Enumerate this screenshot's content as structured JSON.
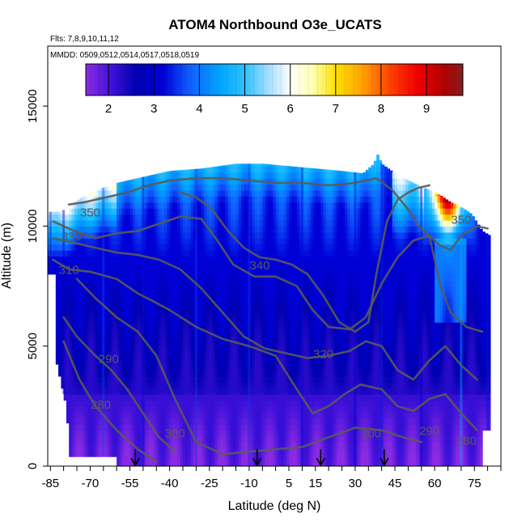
{
  "chart_data": {
    "type": "heatmap",
    "title": "ATOM4 Northbound O3e_UCATS",
    "subtitle_flights": "Flts: 7,8,9,10,11,12",
    "subtitle_dates": "MMDD: 0509,0512,0514,0517,0518,0519",
    "xlabel": "Latitude (deg N)",
    "ylabel": "Altitude (m)",
    "xlim": [
      -86,
      85
    ],
    "ylim": [
      0,
      17500
    ],
    "x_ticks": [
      -85,
      -80,
      -75,
      -70,
      -65,
      -60,
      -55,
      -50,
      -45,
      -40,
      -35,
      -30,
      -25,
      -20,
      -15,
      -10,
      -5,
      0,
      5,
      10,
      15,
      20,
      25,
      30,
      35,
      40,
      45,
      50,
      55,
      60,
      65,
      70,
      75,
      80,
      85
    ],
    "x_tick_labels": [
      {
        "value": -85,
        "label": "-85"
      },
      {
        "value": -70,
        "label": "-70"
      },
      {
        "value": -55,
        "label": "-55"
      },
      {
        "value": -40,
        "label": "-40"
      },
      {
        "value": -25,
        "label": "-25"
      },
      {
        "value": -10,
        "label": "-10"
      },
      {
        "value": 5,
        "label": "5"
      },
      {
        "value": 15,
        "label": "15"
      },
      {
        "value": 30,
        "label": "30"
      },
      {
        "value": 45,
        "label": "45"
      },
      {
        "value": 60,
        "label": "60"
      },
      {
        "value": 75,
        "label": "75"
      }
    ],
    "y_tick_labels": [
      {
        "value": 0,
        "label": "0"
      },
      {
        "value": 5000,
        "label": "5000"
      },
      {
        "value": 10000,
        "label": "10000"
      },
      {
        "value": 15000,
        "label": "15000"
      }
    ],
    "colorbar": {
      "range": [
        1.5,
        9.8
      ],
      "tick_labels": [
        {
          "value": 2,
          "label": "2"
        },
        {
          "value": 3,
          "label": "3"
        },
        {
          "value": 4,
          "label": "4"
        },
        {
          "value": 5,
          "label": "5"
        },
        {
          "value": 6,
          "label": "6"
        },
        {
          "value": 7,
          "label": "7"
        },
        {
          "value": 8,
          "label": "8"
        },
        {
          "value": 9,
          "label": "9"
        }
      ],
      "color_stops": [
        {
          "v": 1.5,
          "c": "#8a2be2"
        },
        {
          "v": 2.1,
          "c": "#3c10d8"
        },
        {
          "v": 2.6,
          "c": "#0000b0"
        },
        {
          "v": 3.2,
          "c": "#0000d8"
        },
        {
          "v": 3.8,
          "c": "#1060ff"
        },
        {
          "v": 4.5,
          "c": "#00aaff"
        },
        {
          "v": 5.0,
          "c": "#30c0ff"
        },
        {
          "v": 5.5,
          "c": "#a0dcff"
        },
        {
          "v": 6.0,
          "c": "#ffffff"
        },
        {
          "v": 6.5,
          "c": "#ffffb0"
        },
        {
          "v": 7.0,
          "c": "#ffe000"
        },
        {
          "v": 7.6,
          "c": "#ffa000"
        },
        {
          "v": 8.2,
          "c": "#ff4000"
        },
        {
          "v": 8.8,
          "c": "#f00000"
        },
        {
          "v": 9.4,
          "c": "#b00000"
        },
        {
          "v": 9.8,
          "c": "#802020"
        }
      ]
    },
    "sample_flight_legs": [
      {
        "lat": -85,
        "alts": [
          10500,
          10000,
          9000,
          8000
        ]
      },
      {
        "lat": -80,
        "alts": [
          10300,
          9500,
          7500,
          5000,
          3000,
          1500
        ]
      },
      {
        "lat": -65,
        "alts": [
          11500,
          10000,
          7000,
          4000,
          1000
        ]
      },
      {
        "lat": -50,
        "alts": [
          12200,
          10500,
          6000,
          2000,
          500
        ]
      },
      {
        "lat": -30,
        "alts": [
          12400,
          9000,
          4000,
          500
        ]
      },
      {
        "lat": -10,
        "alts": [
          12600,
          8000,
          3000,
          500
        ]
      },
      {
        "lat": 10,
        "alts": [
          12300,
          9500,
          5000,
          1000
        ]
      },
      {
        "lat": 30,
        "alts": [
          12100,
          8500,
          2500,
          500
        ]
      },
      {
        "lat": 40,
        "alts": [
          12900,
          11000,
          6000,
          500
        ]
      },
      {
        "lat": 55,
        "alts": [
          11500,
          10000,
          6000,
          1000
        ]
      },
      {
        "lat": 70,
        "alts": [
          10500,
          9000,
          6000,
          1000
        ]
      },
      {
        "lat": 80,
        "alts": [
          9500,
          5000,
          2000
        ]
      }
    ],
    "theta_contours": [
      {
        "level": 280,
        "label": "280",
        "points": [
          [
            -80,
            5200
          ],
          [
            -74,
            3600
          ],
          [
            -68,
            2500
          ],
          [
            -60,
            1500
          ],
          [
            -52,
            700
          ],
          [
            -45,
            200
          ]
        ]
      },
      {
        "level": 290,
        "label": "290",
        "points": [
          [
            -80,
            6200
          ],
          [
            -75,
            5400
          ],
          [
            -68,
            4600
          ],
          [
            -62,
            4000
          ],
          [
            -56,
            3200
          ],
          [
            -50,
            2200
          ],
          [
            -44,
            1200
          ],
          [
            -38,
            600
          ]
        ]
      },
      {
        "level": 300,
        "label": "300",
        "points": [
          [
            -75,
            7800
          ],
          [
            -68,
            7000
          ],
          [
            -60,
            6200
          ],
          [
            -52,
            5600
          ],
          [
            -45,
            4600
          ],
          [
            -38,
            2800
          ],
          [
            -30,
            1000
          ],
          [
            -20,
            500
          ],
          [
            -10,
            600
          ],
          [
            0,
            700
          ],
          [
            10,
            800
          ],
          [
            20,
            1200
          ],
          [
            30,
            1600
          ],
          [
            40,
            1500
          ],
          [
            48,
            1200
          ],
          [
            55,
            1000
          ]
        ]
      },
      {
        "level": 310,
        "label": "310",
        "points": [
          [
            -84,
            8600
          ],
          [
            -78,
            8200
          ],
          [
            -70,
            8100
          ],
          [
            -60,
            7800
          ],
          [
            -52,
            7200
          ],
          [
            -45,
            6800
          ],
          [
            -40,
            6500
          ],
          [
            -30,
            5800
          ],
          [
            -20,
            5300
          ],
          [
            -10,
            5000
          ],
          [
            0,
            4600
          ],
          [
            8,
            3200
          ],
          [
            14,
            2200
          ],
          [
            20,
            2500
          ],
          [
            26,
            3000
          ],
          [
            32,
            3400
          ],
          [
            40,
            3200
          ],
          [
            46,
            2500
          ],
          [
            52,
            2300
          ],
          [
            58,
            2800
          ],
          [
            64,
            3000
          ],
          [
            70,
            2200
          ],
          [
            76,
            1500
          ]
        ]
      },
      {
        "level": 320,
        "label": "320",
        "points": [
          [
            -84,
            9500
          ],
          [
            -76,
            9300
          ],
          [
            -68,
            9100
          ],
          [
            -60,
            8900
          ],
          [
            -52,
            8800
          ],
          [
            -44,
            8600
          ],
          [
            -36,
            8200
          ],
          [
            -28,
            7400
          ],
          [
            -20,
            6400
          ],
          [
            -12,
            5400
          ],
          [
            -4,
            4900
          ],
          [
            4,
            4700
          ],
          [
            12,
            4500
          ],
          [
            20,
            4600
          ],
          [
            28,
            4800
          ],
          [
            34,
            5200
          ],
          [
            40,
            5000
          ],
          [
            46,
            4000
          ],
          [
            52,
            3600
          ],
          [
            58,
            4400
          ],
          [
            64,
            5000
          ],
          [
            70,
            4200
          ],
          [
            76,
            3600
          ]
        ]
      },
      {
        "level": 330,
        "label": "330",
        "points": [
          [
            -84,
            10200
          ],
          [
            -76,
            9800
          ],
          [
            -68,
            9500
          ],
          [
            -60,
            9700
          ],
          [
            -52,
            9800
          ],
          [
            -44,
            10100
          ],
          [
            -36,
            10400
          ],
          [
            -28,
            10300
          ],
          [
            -22,
            9400
          ],
          [
            -16,
            8400
          ],
          [
            -8,
            7900
          ],
          [
            0,
            7900
          ],
          [
            8,
            7500
          ],
          [
            14,
            6500
          ],
          [
            20,
            5800
          ],
          [
            28,
            5700
          ],
          [
            34,
            6200
          ],
          [
            40,
            7600
          ],
          [
            46,
            8700
          ],
          [
            52,
            9400
          ],
          [
            58,
            9600
          ],
          [
            62,
            7600
          ],
          [
            66,
            6400
          ],
          [
            72,
            5800
          ],
          [
            78,
            5600
          ]
        ]
      },
      {
        "level": 340,
        "label": "340",
        "points": [
          [
            -36,
            11400
          ],
          [
            -30,
            11200
          ],
          [
            -24,
            10700
          ],
          [
            -18,
            9800
          ],
          [
            -12,
            9100
          ],
          [
            -6,
            8700
          ],
          [
            0,
            8600
          ],
          [
            6,
            8400
          ],
          [
            12,
            8000
          ],
          [
            18,
            7100
          ],
          [
            24,
            6000
          ],
          [
            30,
            5600
          ],
          [
            35,
            6000
          ],
          [
            38,
            8000
          ],
          [
            42,
            10200
          ],
          [
            46,
            11100
          ],
          [
            50,
            11400
          ],
          [
            54,
            11600
          ],
          [
            58,
            11700
          ]
        ]
      },
      {
        "level": 350,
        "label": "350",
        "points": [
          [
            -78,
            10900
          ],
          [
            -72,
            11000
          ],
          [
            -64,
            11200
          ],
          [
            -56,
            11400
          ],
          [
            -48,
            11700
          ],
          [
            -40,
            11900
          ],
          [
            -30,
            12000
          ],
          [
            -20,
            12000
          ],
          [
            -10,
            11900
          ],
          [
            0,
            11800
          ],
          [
            10,
            11800
          ],
          [
            20,
            11700
          ],
          [
            30,
            11800
          ],
          [
            38,
            12000
          ],
          [
            44,
            11500
          ],
          [
            50,
            10700
          ],
          [
            54,
            10000
          ],
          [
            58,
            9600
          ],
          [
            62,
            9200
          ],
          [
            66,
            9000
          ],
          [
            70,
            9600
          ],
          [
            76,
            10000
          ],
          [
            80,
            9900
          ]
        ]
      }
    ],
    "contour_labels": [
      {
        "label": "350",
        "x": -70,
        "y": 10400
      },
      {
        "label": "330",
        "x": -77,
        "y": 9400
      },
      {
        "label": "310",
        "x": -78,
        "y": 8000
      },
      {
        "label": "340",
        "x": -6,
        "y": 8200
      },
      {
        "label": "320",
        "x": 18,
        "y": 4500
      },
      {
        "label": "290",
        "x": -63,
        "y": 4300
      },
      {
        "label": "280",
        "x": -66,
        "y": 2400
      },
      {
        "label": "300",
        "x": -38,
        "y": 1200
      },
      {
        "label": "300",
        "x": 36,
        "y": 1200
      },
      {
        "label": "290",
        "x": 58,
        "y": 1300
      },
      {
        "label": "280",
        "x": 72,
        "y": 900
      },
      {
        "label": "350",
        "x": 70,
        "y": 10100
      }
    ],
    "arrows": [
      {
        "lat": -53,
        "alt_top": 700,
        "alt_bottom": 0
      },
      {
        "lat": -7,
        "alt_top": 700,
        "alt_bottom": 0
      },
      {
        "lat": 17,
        "alt_top": 700,
        "alt_bottom": 0
      },
      {
        "lat": 41,
        "alt_top": 700,
        "alt_bottom": 0
      }
    ]
  }
}
